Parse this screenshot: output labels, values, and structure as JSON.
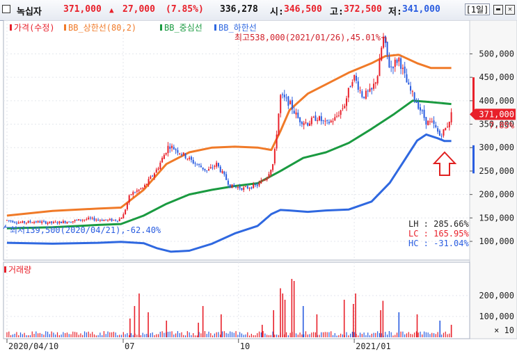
{
  "header": {
    "stock_name": "녹십자",
    "price": "371,000",
    "change_arrow": "▲",
    "change": "27,000",
    "change_pct": "(7.85%)",
    "volume": "336,278",
    "open_label": "시:",
    "open": "346,500",
    "high_label": "고:",
    "high": "372,500",
    "low_label": "저:",
    "low": "341,000",
    "period": "[1일]"
  },
  "colors": {
    "up": "#e8202a",
    "down": "#2a5de0",
    "upper_band": "#f07a28",
    "middle_band": "#1a9a40",
    "lower_band": "#2f68e0",
    "arrow": "#e02020"
  },
  "icons": [
    "checkbox-icon",
    "minimize-icon",
    "close-icon",
    "up-arrow-icon"
  ],
  "chart_data": [
    {
      "type": "line",
      "panel": "price",
      "legend": [
        {
          "label": "가격(수정)",
          "color": "#e8202a"
        },
        {
          "label": "BB_상한선(80,2)",
          "color": "#f07a28"
        },
        {
          "label": "BB_중심선",
          "color": "#1a9a40"
        },
        {
          "label": "BB_하한선",
          "color": "#2f68e0"
        }
      ],
      "ylim": [
        60000,
        560000
      ],
      "y_ticks": [
        {
          "value": 100000,
          "label": "100,000"
        },
        {
          "value": 150000,
          "label": "150,000"
        },
        {
          "value": 200000,
          "label": "200,000"
        },
        {
          "value": 250000,
          "label": "250,000"
        },
        {
          "value": 300000,
          "label": "300,000"
        },
        {
          "value": 350000,
          "label": "350,000"
        },
        {
          "value": 400000,
          "label": "400,000"
        },
        {
          "value": 450000,
          "label": "450,000"
        },
        {
          "value": 500000,
          "label": "500,000"
        }
      ],
      "x_ticks": [
        {
          "t": 0.0,
          "label": "2020/04/10"
        },
        {
          "t": 0.255,
          "label": "07"
        },
        {
          "t": 0.508,
          "label": "10"
        },
        {
          "t": 0.762,
          "label": "2021/01"
        }
      ],
      "price_series": [
        [
          0.0,
          145000
        ],
        [
          0.03,
          140000
        ],
        [
          0.06,
          142000
        ],
        [
          0.1,
          139500
        ],
        [
          0.14,
          143000
        ],
        [
          0.18,
          148000
        ],
        [
          0.22,
          145000
        ],
        [
          0.245,
          146000
        ],
        [
          0.255,
          155000
        ],
        [
          0.27,
          200000
        ],
        [
          0.3,
          215000
        ],
        [
          0.33,
          255000
        ],
        [
          0.355,
          305000
        ],
        [
          0.38,
          290000
        ],
        [
          0.41,
          268000
        ],
        [
          0.44,
          250000
        ],
        [
          0.46,
          265000
        ],
        [
          0.49,
          218000
        ],
        [
          0.52,
          213000
        ],
        [
          0.55,
          220000
        ],
        [
          0.57,
          238000
        ],
        [
          0.585,
          268000
        ],
        [
          0.6,
          410000
        ],
        [
          0.62,
          395000
        ],
        [
          0.64,
          360000
        ],
        [
          0.66,
          352000
        ],
        [
          0.68,
          365000
        ],
        [
          0.7,
          350000
        ],
        [
          0.72,
          362000
        ],
        [
          0.74,
          390000
        ],
        [
          0.76,
          455000
        ],
        [
          0.78,
          410000
        ],
        [
          0.8,
          420000
        ],
        [
          0.815,
          460000
        ],
        [
          0.825,
          538000
        ],
        [
          0.84,
          470000
        ],
        [
          0.86,
          490000
        ],
        [
          0.88,
          430000
        ],
        [
          0.9,
          395000
        ],
        [
          0.92,
          355000
        ],
        [
          0.935,
          350000
        ],
        [
          0.95,
          325000
        ],
        [
          0.965,
          344000
        ],
        [
          0.975,
          371000
        ]
      ],
      "upper_band": [
        [
          0.0,
          155000
        ],
        [
          0.1,
          165000
        ],
        [
          0.2,
          170000
        ],
        [
          0.25,
          172000
        ],
        [
          0.3,
          210000
        ],
        [
          0.35,
          265000
        ],
        [
          0.4,
          290000
        ],
        [
          0.45,
          300000
        ],
        [
          0.5,
          302000
        ],
        [
          0.55,
          300000
        ],
        [
          0.58,
          295000
        ],
        [
          0.6,
          335000
        ],
        [
          0.62,
          380000
        ],
        [
          0.66,
          415000
        ],
        [
          0.7,
          435000
        ],
        [
          0.75,
          460000
        ],
        [
          0.8,
          480000
        ],
        [
          0.83,
          495000
        ],
        [
          0.86,
          498000
        ],
        [
          0.9,
          480000
        ],
        [
          0.93,
          470000
        ],
        [
          0.975,
          470000
        ]
      ],
      "middle_band": [
        [
          0.0,
          128000
        ],
        [
          0.1,
          130000
        ],
        [
          0.2,
          135000
        ],
        [
          0.25,
          137000
        ],
        [
          0.3,
          155000
        ],
        [
          0.35,
          180000
        ],
        [
          0.4,
          200000
        ],
        [
          0.45,
          210000
        ],
        [
          0.5,
          218000
        ],
        [
          0.55,
          224000
        ],
        [
          0.6,
          250000
        ],
        [
          0.65,
          278000
        ],
        [
          0.7,
          290000
        ],
        [
          0.75,
          310000
        ],
        [
          0.8,
          340000
        ],
        [
          0.85,
          372000
        ],
        [
          0.89,
          400000
        ],
        [
          0.92,
          398000
        ],
        [
          0.975,
          393000
        ]
      ],
      "lower_band": [
        [
          0.0,
          97000
        ],
        [
          0.1,
          95000
        ],
        [
          0.2,
          97000
        ],
        [
          0.25,
          99000
        ],
        [
          0.3,
          96000
        ],
        [
          0.33,
          85000
        ],
        [
          0.36,
          78000
        ],
        [
          0.4,
          80000
        ],
        [
          0.45,
          95000
        ],
        [
          0.5,
          117000
        ],
        [
          0.55,
          133000
        ],
        [
          0.58,
          158000
        ],
        [
          0.6,
          167000
        ],
        [
          0.62,
          166000
        ],
        [
          0.66,
          163000
        ],
        [
          0.7,
          166000
        ],
        [
          0.75,
          168000
        ],
        [
          0.8,
          185000
        ],
        [
          0.84,
          225000
        ],
        [
          0.87,
          270000
        ],
        [
          0.9,
          315000
        ],
        [
          0.92,
          328000
        ],
        [
          0.945,
          320000
        ],
        [
          0.96,
          314000
        ],
        [
          0.975,
          314000
        ]
      ],
      "annotations": {
        "max_label": "최고538,000(2021/01/26),45.01%",
        "min_label": "최저139,500(2020/04/21),-62.40%",
        "current_price": "371,000",
        "current_change": "7.85%",
        "lh": "LH :  285.66%",
        "lc": "LC :  165.95%",
        "hc": "HC :  -31.04%"
      }
    },
    {
      "type": "bar",
      "panel": "volume",
      "legend": [
        {
          "label": "거래량",
          "color": "#e8202a"
        }
      ],
      "unit_label": "× 10",
      "ylim": [
        0,
        300000
      ],
      "y_ticks": [
        {
          "value": 100000,
          "label": "100,000"
        },
        {
          "value": 200000,
          "label": "200,000"
        }
      ],
      "x_ticks": [
        {
          "t": 0.0,
          "label": "2020/04/10"
        },
        {
          "t": 0.255,
          "label": "07"
        },
        {
          "t": 0.508,
          "label": "10"
        },
        {
          "t": 0.762,
          "label": "2021/01"
        }
      ],
      "spikes": [
        [
          0.27,
          90000,
          "up"
        ],
        [
          0.28,
          150000,
          "up"
        ],
        [
          0.29,
          210000,
          "up"
        ],
        [
          0.31,
          120000,
          "up"
        ],
        [
          0.35,
          80000,
          "up"
        ],
        [
          0.42,
          70000,
          "up"
        ],
        [
          0.43,
          150000,
          "up"
        ],
        [
          0.47,
          110000,
          "up"
        ],
        [
          0.56,
          60000,
          "up"
        ],
        [
          0.585,
          130000,
          "up"
        ],
        [
          0.6,
          235000,
          "up"
        ],
        [
          0.605,
          210000,
          "up"
        ],
        [
          0.61,
          180000,
          "up"
        ],
        [
          0.625,
          280000,
          "up"
        ],
        [
          0.63,
          270000,
          "up"
        ],
        [
          0.65,
          150000,
          "down"
        ],
        [
          0.68,
          110000,
          "up"
        ],
        [
          0.74,
          180000,
          "up"
        ],
        [
          0.76,
          160000,
          "up"
        ],
        [
          0.765,
          210000,
          "up"
        ],
        [
          0.82,
          130000,
          "up"
        ],
        [
          0.825,
          175000,
          "up"
        ],
        [
          0.86,
          120000,
          "down"
        ],
        [
          0.9,
          110000,
          "up"
        ],
        [
          0.95,
          80000,
          "down"
        ],
        [
          0.975,
          60000,
          "up"
        ]
      ]
    }
  ]
}
